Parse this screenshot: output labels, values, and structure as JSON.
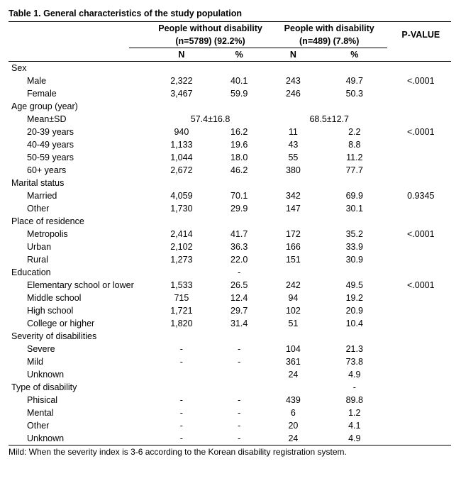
{
  "title": "Table 1. General characteristics of the study population",
  "headers": {
    "group1_line1": "People without disability",
    "group1_line2": "(n=5789) (92.2%)",
    "group2_line1": "People with disability",
    "group2_line2": "(n=489) (7.8%)",
    "n_label": "N",
    "pct_label": "%",
    "pvalue_label": "P-VALUE"
  },
  "sections": [
    {
      "label": "Sex",
      "rows": [
        {
          "label": "Male",
          "n1": "2,322",
          "p1": "40.1",
          "n2": "243",
          "p2": "49.7",
          "pv": "<.0001"
        },
        {
          "label": "Female",
          "n1": "3,467",
          "p1": "59.9",
          "n2": "246",
          "p2": "50.3",
          "pv": ""
        }
      ]
    },
    {
      "label": "Age group (year)",
      "rows": [
        {
          "label": "Mean±SD",
          "span1": "57.4±16.8",
          "span2": "68.5±12.7",
          "pv": ""
        },
        {
          "label": "20-39 years",
          "n1": "940",
          "p1": "16.2",
          "n2": "11",
          "p2": "2.2",
          "pv": "<.0001"
        },
        {
          "label": "40-49 years",
          "n1": "1,133",
          "p1": "19.6",
          "n2": "43",
          "p2": "8.8",
          "pv": ""
        },
        {
          "label": "50-59 years",
          "n1": "1,044",
          "p1": "18.0",
          "n2": "55",
          "p2": "11.2",
          "pv": ""
        },
        {
          "label": "60+  years",
          "n1": "2,672",
          "p1": "46.2",
          "n2": "380",
          "p2": "77.7",
          "pv": ""
        }
      ]
    },
    {
      "label": "Marital status",
      "rows": [
        {
          "label": "Married",
          "n1": "4,059",
          "p1": "70.1",
          "n2": "342",
          "p2": "69.9",
          "pv": "0.9345"
        },
        {
          "label": "Other",
          "n1": "1,730",
          "p1": "29.9",
          "n2": "147",
          "p2": "30.1",
          "pv": ""
        }
      ]
    },
    {
      "label": "Place of residence",
      "rows": [
        {
          "label": "Metropolis",
          "n1": "2,414",
          "p1": "41.7",
          "n2": "172",
          "p2": "35.2",
          "pv": "<.0001"
        },
        {
          "label": "Urban",
          "n1": "2,102",
          "p1": "36.3",
          "n2": "166",
          "p2": "33.9",
          "pv": ""
        },
        {
          "label": "Rural",
          "n1": "1,273",
          "p1": "22.0",
          "n2": "151",
          "p2": "30.9",
          "pv": ""
        }
      ]
    },
    {
      "label": "Education",
      "section_p1": "-",
      "rows": [
        {
          "label": "Elementary school or lower",
          "n1": "1,533",
          "p1": "26.5",
          "n2": "242",
          "p2": "49.5",
          "pv": "<.0001"
        },
        {
          "label": "Middle school",
          "n1": "715",
          "p1": "12.4",
          "n2": "94",
          "p2": "19.2",
          "pv": ""
        },
        {
          "label": "High school",
          "n1": "1,721",
          "p1": "29.7",
          "n2": "102",
          "p2": "20.9",
          "pv": ""
        },
        {
          "label": "College or higher",
          "n1": "1,820",
          "p1": "31.4",
          "n2": "51",
          "p2": "10.4",
          "pv": ""
        }
      ]
    },
    {
      "label": "Severity of disabilities",
      "rows": [
        {
          "label": "Severe",
          "n1": "-",
          "p1": "-",
          "n2": "104",
          "p2": "21.3",
          "pv": ""
        },
        {
          "label": "Mild",
          "n1": "-",
          "p1": "-",
          "n2": "361",
          "p2": "73.8",
          "pv": ""
        },
        {
          "label": "Unknown",
          "n1": "",
          "p1": "",
          "n2": "24",
          "p2": "4.9",
          "pv": ""
        }
      ]
    },
    {
      "label": "Type of disability",
      "section_p2": "-",
      "rows": [
        {
          "label": "Phisical",
          "n1": "-",
          "p1": "-",
          "n2": "439",
          "p2": "89.8",
          "pv": ""
        },
        {
          "label": "Mental",
          "n1": "-",
          "p1": "-",
          "n2": "6",
          "p2": "1.2",
          "pv": ""
        },
        {
          "label": "Other",
          "n1": "-",
          "p1": "-",
          "n2": "20",
          "p2": "4.1",
          "pv": ""
        },
        {
          "label": "Unknown",
          "n1": "-",
          "p1": "-",
          "n2": "24",
          "p2": "4.9",
          "pv": ""
        }
      ]
    }
  ],
  "footnote": "Mild: When the severity index is 3-6 according to the Korean disability registration system."
}
